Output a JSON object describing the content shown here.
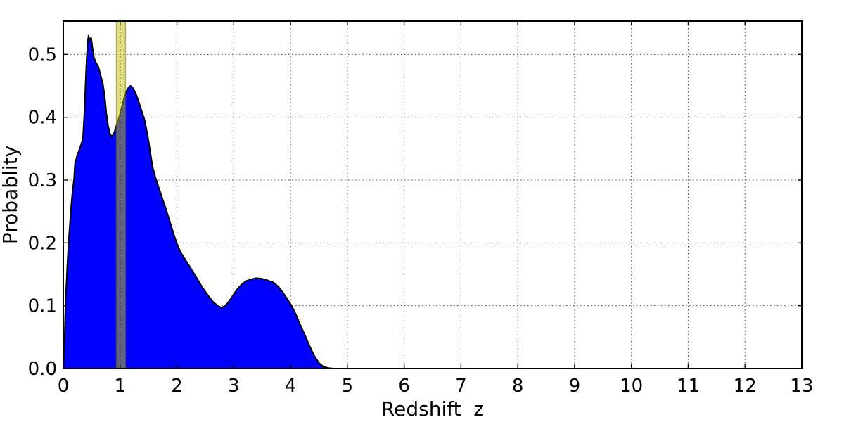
{
  "chart_data": {
    "type": "area",
    "title": "",
    "xlabel": "Redshift  z",
    "ylabel": "Probablity",
    "xlim": [
      0,
      13
    ],
    "ylim": [
      0,
      0.553
    ],
    "x_ticks": {
      "values": [
        0,
        1,
        2,
        3,
        4,
        5,
        6,
        7,
        8,
        9,
        10,
        11,
        12,
        13
      ],
      "labels": [
        "0",
        "1",
        "2",
        "3",
        "4",
        "5",
        "6",
        "7",
        "8",
        "9",
        "10",
        "11",
        "12",
        "13"
      ]
    },
    "y_ticks": {
      "values": [
        0.0,
        0.1,
        0.2,
        0.3,
        0.4,
        0.5
      ],
      "labels": [
        "0.0",
        "0.1",
        "0.2",
        "0.3",
        "0.4",
        "0.5"
      ]
    },
    "grid": {
      "visible": true,
      "style": "dotted",
      "color": "#4a4a4a"
    },
    "legend": {
      "visible": false
    },
    "band": {
      "x_from": 0.935,
      "x_to": 1.095,
      "color": "#bfbf00",
      "alpha": 0.5,
      "edge_color": "#6e6e00",
      "center_line_x": 1.0,
      "center_line_style": "dotted",
      "center_line_color": "#1a1a1a"
    },
    "series": [
      {
        "name": "redshift-probability-density",
        "fill_color": "#0000ff",
        "edge_color": "#000000",
        "points": [
          [
            0.0,
            0.0
          ],
          [
            0.02,
            0.04
          ],
          [
            0.04,
            0.105
          ],
          [
            0.07,
            0.165
          ],
          [
            0.1,
            0.21
          ],
          [
            0.13,
            0.248
          ],
          [
            0.16,
            0.28
          ],
          [
            0.19,
            0.302
          ],
          [
            0.205,
            0.326
          ],
          [
            0.24,
            0.338
          ],
          [
            0.28,
            0.348
          ],
          [
            0.32,
            0.358
          ],
          [
            0.345,
            0.366
          ],
          [
            0.37,
            0.405
          ],
          [
            0.39,
            0.45
          ],
          [
            0.41,
            0.492
          ],
          [
            0.43,
            0.52
          ],
          [
            0.445,
            0.53
          ],
          [
            0.465,
            0.522
          ],
          [
            0.49,
            0.527
          ],
          [
            0.51,
            0.513
          ],
          [
            0.54,
            0.495
          ],
          [
            0.58,
            0.486
          ],
          [
            0.62,
            0.48
          ],
          [
            0.66,
            0.466
          ],
          [
            0.7,
            0.452
          ],
          [
            0.73,
            0.432
          ],
          [
            0.76,
            0.405
          ],
          [
            0.79,
            0.386
          ],
          [
            0.82,
            0.375
          ],
          [
            0.85,
            0.369
          ],
          [
            0.89,
            0.374
          ],
          [
            0.93,
            0.385
          ],
          [
            0.97,
            0.396
          ],
          [
            1.0,
            0.405
          ],
          [
            1.04,
            0.42
          ],
          [
            1.08,
            0.434
          ],
          [
            1.12,
            0.443
          ],
          [
            1.16,
            0.449
          ],
          [
            1.19,
            0.45
          ],
          [
            1.23,
            0.446
          ],
          [
            1.28,
            0.437
          ],
          [
            1.33,
            0.424
          ],
          [
            1.38,
            0.41
          ],
          [
            1.43,
            0.396
          ],
          [
            1.48,
            0.374
          ],
          [
            1.53,
            0.345
          ],
          [
            1.57,
            0.322
          ],
          [
            1.62,
            0.305
          ],
          [
            1.68,
            0.288
          ],
          [
            1.74,
            0.272
          ],
          [
            1.8,
            0.256
          ],
          [
            1.87,
            0.236
          ],
          [
            1.94,
            0.215
          ],
          [
            2.0,
            0.199
          ],
          [
            2.06,
            0.186
          ],
          [
            2.15,
            0.173
          ],
          [
            2.25,
            0.159
          ],
          [
            2.35,
            0.144
          ],
          [
            2.45,
            0.129
          ],
          [
            2.55,
            0.116
          ],
          [
            2.65,
            0.105
          ],
          [
            2.72,
            0.1
          ],
          [
            2.78,
            0.097
          ],
          [
            2.84,
            0.099
          ],
          [
            2.9,
            0.105
          ],
          [
            2.97,
            0.114
          ],
          [
            3.05,
            0.125
          ],
          [
            3.13,
            0.133
          ],
          [
            3.21,
            0.139
          ],
          [
            3.3,
            0.142
          ],
          [
            3.4,
            0.144
          ],
          [
            3.5,
            0.143
          ],
          [
            3.58,
            0.141
          ],
          [
            3.64,
            0.139
          ],
          [
            3.7,
            0.137
          ],
          [
            3.78,
            0.131
          ],
          [
            3.86,
            0.122
          ],
          [
            3.94,
            0.111
          ],
          [
            4.02,
            0.1
          ],
          [
            4.1,
            0.085
          ],
          [
            4.18,
            0.068
          ],
          [
            4.26,
            0.052
          ],
          [
            4.34,
            0.035
          ],
          [
            4.42,
            0.02
          ],
          [
            4.5,
            0.009
          ],
          [
            4.58,
            0.003
          ],
          [
            4.66,
            0.001
          ],
          [
            4.75,
            0.0
          ]
        ]
      }
    ]
  }
}
